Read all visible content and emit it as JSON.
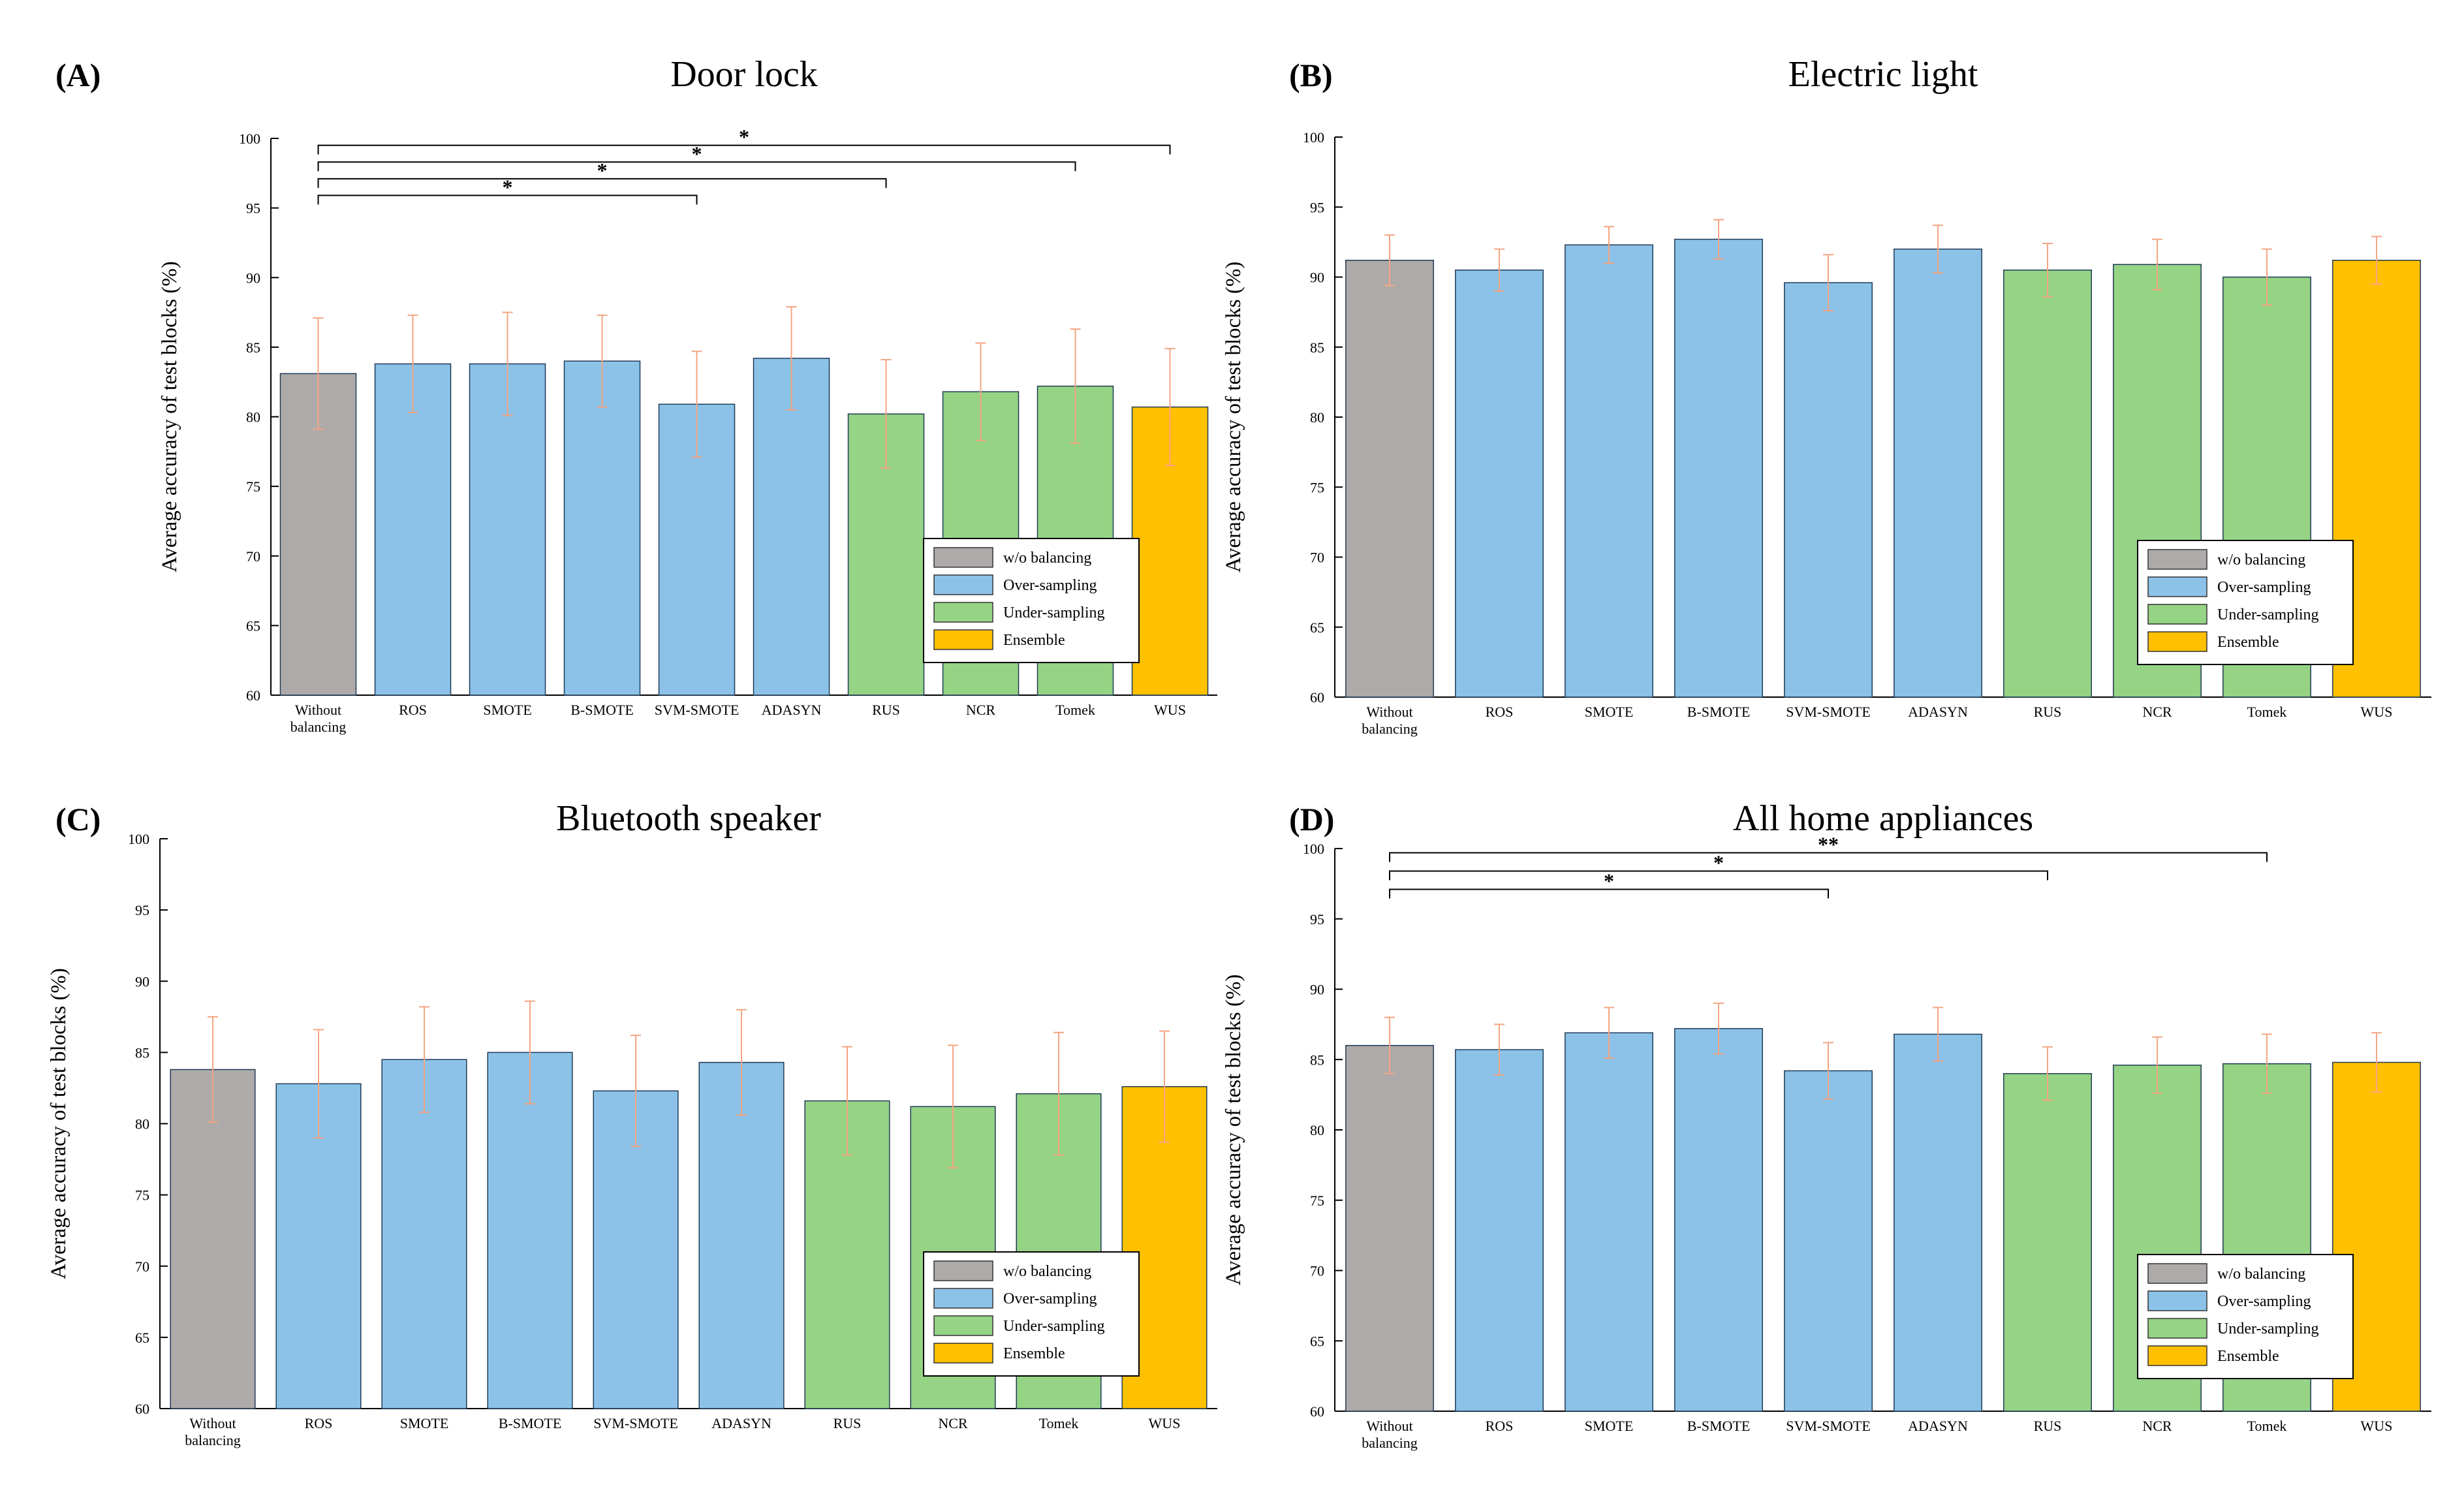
{
  "colors": {
    "without": "#aeaaa9",
    "over": "#8cc2e8",
    "under": "#95d385",
    "ensemble": "#ffc000",
    "errorbar": "#f4a582",
    "axis": "#000000"
  },
  "legend_entries": [
    {
      "label": "w/o balancing",
      "color_key": "without"
    },
    {
      "label": "Over-sampling",
      "color_key": "over"
    },
    {
      "label": "Under-sampling",
      "color_key": "under"
    },
    {
      "label": "Ensemble",
      "color_key": "ensemble"
    }
  ],
  "chart_data": [
    {
      "id": "A",
      "panel_label": "(A)",
      "type": "bar",
      "title": "Door lock",
      "ylabel": "Average accuracy of test blocks (%)",
      "xlabel": "",
      "ylim": [
        60,
        100
      ],
      "yticks": [
        "60",
        "65",
        "70",
        "75",
        "80",
        "85",
        "90",
        "95",
        "100"
      ],
      "categories": [
        "Without balancing",
        "ROS",
        "SMOTE",
        "B-SMOTE",
        "SVM-SMOTE",
        "ADASYN",
        "RUS",
        "NCR",
        "Tomek",
        "WUS"
      ],
      "groups": [
        "without",
        "over",
        "over",
        "over",
        "over",
        "over",
        "under",
        "under",
        "under",
        "ensemble"
      ],
      "values": [
        83.1,
        83.8,
        83.8,
        84.0,
        80.9,
        84.2,
        80.2,
        81.8,
        82.2,
        80.7
      ],
      "errors": [
        4.0,
        3.5,
        3.7,
        3.3,
        3.8,
        3.7,
        3.9,
        3.5,
        4.1,
        4.2
      ],
      "legend": "bottom-right",
      "significance": [
        {
          "from": 0,
          "to": 9,
          "y": 99.5,
          "label": "*"
        },
        {
          "from": 0,
          "to": 8,
          "y": 98.3,
          "label": "*"
        },
        {
          "from": 0,
          "to": 6,
          "y": 97.1,
          "label": "*"
        },
        {
          "from": 0,
          "to": 4,
          "y": 95.9,
          "label": "*"
        }
      ]
    },
    {
      "id": "B",
      "panel_label": "(B)",
      "type": "bar",
      "title": "Electric light",
      "ylabel": "Average accuracy of test blocks (%)",
      "xlabel": "",
      "ylim": [
        60,
        100
      ],
      "yticks": [
        "60",
        "65",
        "70",
        "75",
        "80",
        "85",
        "90",
        "95",
        "100"
      ],
      "categories": [
        "Without balancing",
        "ROS",
        "SMOTE",
        "B-SMOTE",
        "SVM-SMOTE",
        "ADASYN",
        "RUS",
        "NCR",
        "Tomek",
        "WUS"
      ],
      "groups": [
        "without",
        "over",
        "over",
        "over",
        "over",
        "over",
        "under",
        "under",
        "under",
        "ensemble"
      ],
      "values": [
        91.2,
        90.5,
        92.3,
        92.7,
        89.6,
        92.0,
        90.5,
        90.9,
        90.0,
        91.2
      ],
      "errors": [
        1.8,
        1.5,
        1.3,
        1.4,
        2.0,
        1.7,
        1.9,
        1.8,
        2.0,
        1.7
      ],
      "legend": "bottom-right",
      "significance": []
    },
    {
      "id": "C",
      "panel_label": "(C)",
      "type": "bar",
      "title": "Bluetooth speaker",
      "ylabel": "Average accuracy of test blocks (%)",
      "xlabel": "",
      "ylim": [
        60,
        100
      ],
      "yticks": [
        "60",
        "65",
        "70",
        "75",
        "80",
        "85",
        "90",
        "95",
        "100"
      ],
      "categories": [
        "Without balancing",
        "ROS",
        "SMOTE",
        "B-SMOTE",
        "SVM-SMOTE",
        "ADASYN",
        "RUS",
        "NCR",
        "Tomek",
        "WUS"
      ],
      "groups": [
        "without",
        "over",
        "over",
        "over",
        "over",
        "over",
        "under",
        "under",
        "under",
        "ensemble"
      ],
      "values": [
        83.8,
        82.8,
        84.5,
        85.0,
        82.3,
        84.3,
        81.6,
        81.2,
        82.1,
        82.6
      ],
      "errors": [
        3.7,
        3.8,
        3.7,
        3.6,
        3.9,
        3.7,
        3.8,
        4.3,
        4.3,
        3.9
      ],
      "legend": "bottom-right",
      "significance": []
    },
    {
      "id": "D",
      "panel_label": "(D)",
      "type": "bar",
      "title": "All home appliances",
      "ylabel": "Average accuracy of test blocks (%)",
      "xlabel": "",
      "ylim": [
        60,
        100
      ],
      "yticks": [
        "60",
        "65",
        "70",
        "75",
        "80",
        "85",
        "90",
        "95",
        "100"
      ],
      "categories": [
        "Without balancing",
        "ROS",
        "SMOTE",
        "B-SMOTE",
        "SVM-SMOTE",
        "ADASYN",
        "RUS",
        "NCR",
        "Tomek",
        "WUS"
      ],
      "groups": [
        "without",
        "over",
        "over",
        "over",
        "over",
        "over",
        "under",
        "under",
        "under",
        "ensemble"
      ],
      "values": [
        86.0,
        85.7,
        86.9,
        87.2,
        84.2,
        86.8,
        84.0,
        84.6,
        84.7,
        84.8
      ],
      "errors": [
        2.0,
        1.8,
        1.8,
        1.8,
        2.0,
        1.9,
        1.9,
        2.0,
        2.1,
        2.1
      ],
      "legend": "bottom-right",
      "significance": [
        {
          "from": 0,
          "to": 8,
          "y": 99.7,
          "label": "**"
        },
        {
          "from": 0,
          "to": 6,
          "y": 98.4,
          "label": "*"
        },
        {
          "from": 0,
          "to": 4,
          "y": 97.1,
          "label": "*"
        }
      ]
    }
  ]
}
